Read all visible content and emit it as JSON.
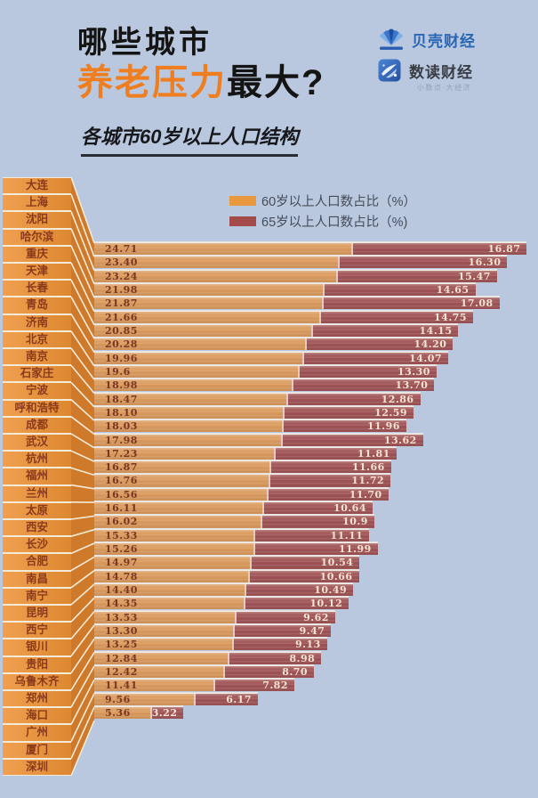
{
  "background_color": "#b9c8de",
  "header": {
    "title_line1": "哪些城市",
    "title_accent": "养老压力",
    "title_rest": "最大?",
    "accent_color": "#ee7e1f",
    "brand_primary": "贝壳财经",
    "brand_secondary": "数读财经",
    "brand_secondary_tagline": "小数点·大经济",
    "subtitle": "各城市60岁以上人口结构"
  },
  "legend": {
    "items": [
      {
        "label": "60岁以上人口数占比（%）",
        "color": "#e8993f"
      },
      {
        "label": "65岁以上人口数占比（%)",
        "color": "#a34a4b"
      }
    ]
  },
  "chart_data": {
    "type": "bar",
    "orientation": "horizontal",
    "stacked": true,
    "title": "各城市60岁以上人口结构",
    "unit": "%",
    "series_names": [
      "60岁以上人口数占比（%）",
      "65岁以上人口数占比（%)"
    ],
    "legend_position": "top-right",
    "grid": false,
    "xlim": [
      0,
      42
    ],
    "colors": {
      "bar_60plus": "#db9b5e",
      "bar_65plus": "#a05456",
      "legend_60plus": "#e8993f",
      "legend_65plus": "#a34a4b",
      "label_box_light": "#f0a050",
      "label_box_dark": "#dd8730",
      "wall_side": "#cf7a2a"
    },
    "rows": [
      {
        "city": "大连",
        "v60": "24.71",
        "v65": "16.87"
      },
      {
        "city": "上海",
        "v60": "23.40",
        "v65": "16.30"
      },
      {
        "city": "沈阳",
        "v60": "23.24",
        "v65": "15.47"
      },
      {
        "city": "哈尔滨",
        "v60": "21.98",
        "v65": "14.65"
      },
      {
        "city": "重庆",
        "v60": "21.87",
        "v65": "17.08"
      },
      {
        "city": "天津",
        "v60": "21.66",
        "v65": "14.75"
      },
      {
        "city": "长春",
        "v60": "20.85",
        "v65": "14.15"
      },
      {
        "city": "青岛",
        "v60": "20.28",
        "v65": "14.20"
      },
      {
        "city": "济南",
        "v60": "19.96",
        "v65": "14.07"
      },
      {
        "city": "北京",
        "v60": "19.6",
        "v65": "13.30"
      },
      {
        "city": "南京",
        "v60": "18.98",
        "v65": "13.70"
      },
      {
        "city": "石家庄",
        "v60": "18.47",
        "v65": "12.86"
      },
      {
        "city": "宁波",
        "v60": "18.10",
        "v65": "12.59"
      },
      {
        "city": "呼和浩特",
        "v60": "18.03",
        "v65": "11.96"
      },
      {
        "city": "成都",
        "v60": "17.98",
        "v65": "13.62"
      },
      {
        "city": "武汉",
        "v60": "17.23",
        "v65": "11.81"
      },
      {
        "city": "杭州",
        "v60": "16.87",
        "v65": "11.66"
      },
      {
        "city": "福州",
        "v60": "16.76",
        "v65": "11.72"
      },
      {
        "city": "兰州",
        "v60": "16.56",
        "v65": "11.70"
      },
      {
        "city": "太原",
        "v60": "16.11",
        "v65": "10.64"
      },
      {
        "city": "西安",
        "v60": "16.02",
        "v65": "10.9"
      },
      {
        "city": "长沙",
        "v60": "15.33",
        "v65": "11.11"
      },
      {
        "city": "合肥",
        "v60": "15.26",
        "v65": "11.99"
      },
      {
        "city": "南昌",
        "v60": "14.97",
        "v65": "10.54"
      },
      {
        "city": "南宁",
        "v60": "14.78",
        "v65": "10.66"
      },
      {
        "city": "昆明",
        "v60": "14.40",
        "v65": "10.49"
      },
      {
        "city": "西宁",
        "v60": "14.35",
        "v65": "10.12"
      },
      {
        "city": "银川",
        "v60": "13.53",
        "v65": "9.62"
      },
      {
        "city": "贵阳",
        "v60": "13.30",
        "v65": "9.47"
      },
      {
        "city": "乌鲁木齐",
        "v60": "13.25",
        "v65": "9.13"
      },
      {
        "city": "郑州",
        "v60": "12.84",
        "v65": "8.98"
      },
      {
        "city": "海口",
        "v60": "12.42",
        "v65": "8.70"
      },
      {
        "city": "广州",
        "v60": "11.41",
        "v65": "7.82"
      },
      {
        "city": "厦门",
        "v60": "9.56",
        "v65": "6.17"
      },
      {
        "city": "深圳",
        "v60": "5.36",
        "v65": "3.22"
      }
    ]
  }
}
